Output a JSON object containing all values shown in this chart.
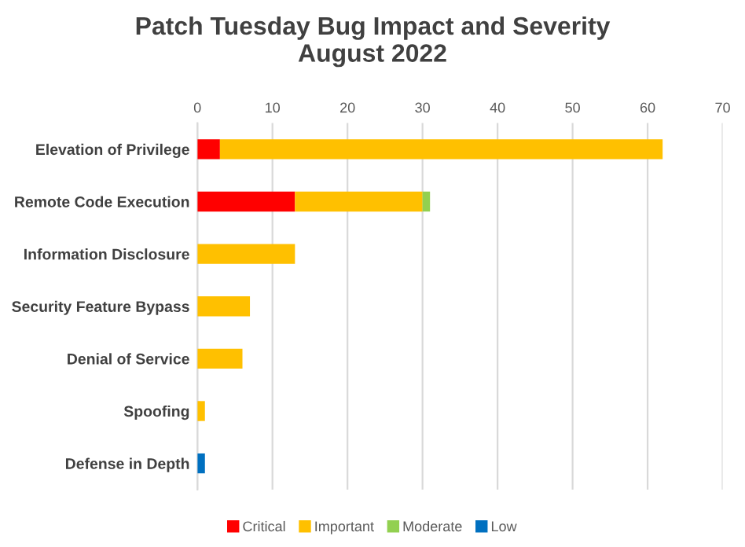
{
  "chart_data": {
    "type": "bar",
    "orientation": "horizontal",
    "stacked": true,
    "title": "Patch Tuesday Bug Impact and Severity\nAugust 2022",
    "categories": [
      "Elevation of Privilege",
      "Remote Code Execution",
      "Information Disclosure",
      "Security Feature Bypass",
      "Denial of Service",
      "Spoofing",
      "Defense in Depth"
    ],
    "series": [
      {
        "name": "Critical",
        "color": "#ff0000",
        "values": [
          3,
          13,
          0,
          0,
          0,
          0,
          0
        ]
      },
      {
        "name": "Important",
        "color": "#ffc000",
        "values": [
          59,
          17,
          13,
          7,
          6,
          1,
          0
        ]
      },
      {
        "name": "Moderate",
        "color": "#92d050",
        "values": [
          0,
          1,
          0,
          0,
          0,
          0,
          0
        ]
      },
      {
        "name": "Low",
        "color": "#0070c0",
        "values": [
          0,
          0,
          0,
          0,
          0,
          0,
          1
        ]
      }
    ],
    "xlim": [
      0,
      70
    ],
    "xticks": [
      0,
      10,
      20,
      30,
      40,
      50,
      60,
      70
    ],
    "grid": "x",
    "legend": "bottom"
  }
}
